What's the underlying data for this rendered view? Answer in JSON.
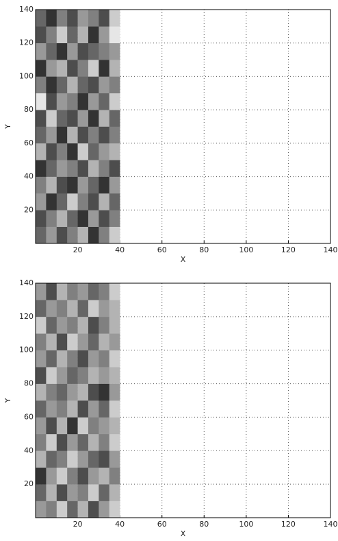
{
  "chart_data": [
    {
      "type": "heatmap",
      "xlabel": "X",
      "ylabel": "Y",
      "xlim": [
        0,
        140
      ],
      "ylim": [
        0,
        140
      ],
      "xticks": [
        20,
        40,
        60,
        80,
        100,
        120,
        140
      ],
      "yticks": [
        20,
        40,
        60,
        80,
        100,
        120,
        140
      ],
      "grid": true,
      "x_edges": [
        0,
        5,
        10,
        15,
        20,
        25,
        30,
        35,
        40
      ],
      "y_edges": [
        0,
        10,
        20,
        30,
        40,
        50,
        60,
        70,
        80,
        90,
        100,
        110,
        120,
        130,
        140
      ],
      "values": [
        [
          0.4,
          0.6,
          0.3,
          0.5,
          0.7,
          0.2,
          0.5,
          0.8
        ],
        [
          0.3,
          0.5,
          0.7,
          0.4,
          0.2,
          0.6,
          0.3,
          0.5
        ],
        [
          0.6,
          0.2,
          0.4,
          0.8,
          0.5,
          0.3,
          0.7,
          0.4
        ],
        [
          0.5,
          0.7,
          0.3,
          0.2,
          0.6,
          0.4,
          0.2,
          0.6
        ],
        [
          0.2,
          0.4,
          0.6,
          0.5,
          0.3,
          0.7,
          0.5,
          0.3
        ],
        [
          0.7,
          0.3,
          0.5,
          0.2,
          0.8,
          0.4,
          0.6,
          0.7
        ],
        [
          0.4,
          0.6,
          0.2,
          0.7,
          0.3,
          0.5,
          0.3,
          0.5
        ],
        [
          0.3,
          0.8,
          0.4,
          0.3,
          0.6,
          0.2,
          0.7,
          0.4
        ],
        [
          0.9,
          0.3,
          0.6,
          0.5,
          0.2,
          0.6,
          0.4,
          0.8
        ],
        [
          0.5,
          0.2,
          0.4,
          0.7,
          0.4,
          0.3,
          0.6,
          0.5
        ],
        [
          0.2,
          0.6,
          0.7,
          0.3,
          0.5,
          0.8,
          0.2,
          0.7
        ],
        [
          0.6,
          0.4,
          0.2,
          0.6,
          0.3,
          0.4,
          0.5,
          0.6
        ],
        [
          0.3,
          0.5,
          0.8,
          0.4,
          0.7,
          0.2,
          0.6,
          0.9
        ],
        [
          0.4,
          0.2,
          0.5,
          0.3,
          0.6,
          0.5,
          0.3,
          0.8
        ]
      ]
    },
    {
      "type": "heatmap",
      "xlabel": "X",
      "ylabel": "Y",
      "xlim": [
        0,
        140
      ],
      "ylim": [
        0,
        140
      ],
      "xticks": [
        20,
        40,
        60,
        80,
        100,
        120,
        140
      ],
      "yticks": [
        20,
        40,
        60,
        80,
        100,
        120,
        140
      ],
      "grid": true,
      "x_edges": [
        0,
        5,
        10,
        15,
        20,
        25,
        30,
        35,
        40
      ],
      "y_edges": [
        0,
        10,
        20,
        30,
        40,
        50,
        60,
        70,
        80,
        90,
        100,
        110,
        120,
        130,
        140
      ],
      "values": [
        [
          0.6,
          0.5,
          0.8,
          0.4,
          0.7,
          0.3,
          0.6,
          0.8
        ],
        [
          0.4,
          0.7,
          0.3,
          0.6,
          0.5,
          0.8,
          0.4,
          0.7
        ],
        [
          0.2,
          0.6,
          0.8,
          0.5,
          0.3,
          0.6,
          0.7,
          0.5
        ],
        [
          0.7,
          0.4,
          0.5,
          0.8,
          0.6,
          0.4,
          0.3,
          0.6
        ],
        [
          0.5,
          0.8,
          0.3,
          0.6,
          0.4,
          0.7,
          0.5,
          0.8
        ],
        [
          0.6,
          0.3,
          0.7,
          0.2,
          0.8,
          0.5,
          0.6,
          0.7
        ],
        [
          0.4,
          0.6,
          0.5,
          0.7,
          0.3,
          0.6,
          0.4,
          0.8
        ],
        [
          0.7,
          0.5,
          0.4,
          0.6,
          0.7,
          0.3,
          0.2,
          0.6
        ],
        [
          0.3,
          0.8,
          0.6,
          0.4,
          0.5,
          0.7,
          0.6,
          0.7
        ],
        [
          0.6,
          0.4,
          0.7,
          0.5,
          0.3,
          0.6,
          0.5,
          0.8
        ],
        [
          0.5,
          0.7,
          0.3,
          0.8,
          0.6,
          0.4,
          0.7,
          0.6
        ],
        [
          0.8,
          0.4,
          0.6,
          0.5,
          0.7,
          0.3,
          0.5,
          0.7
        ],
        [
          0.4,
          0.6,
          0.5,
          0.7,
          0.4,
          0.8,
          0.6,
          0.7
        ],
        [
          0.6,
          0.3,
          0.7,
          0.5,
          0.6,
          0.4,
          0.5,
          0.8
        ]
      ]
    }
  ]
}
